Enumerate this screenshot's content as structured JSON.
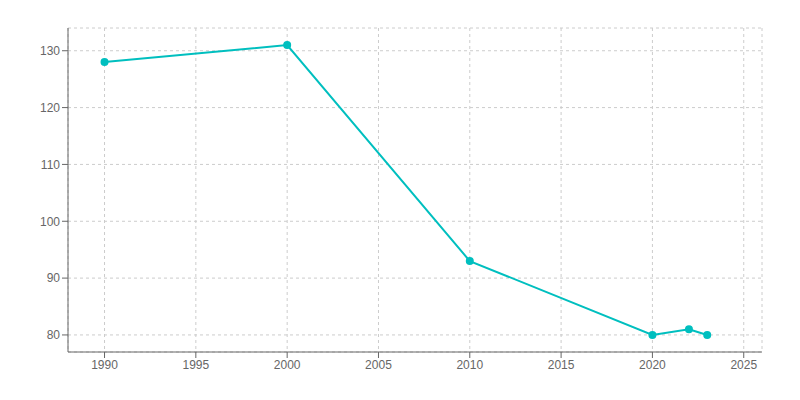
{
  "chart_data": {
    "type": "line",
    "x": [
      1990,
      2000,
      2010,
      2020,
      2022,
      2023
    ],
    "values": [
      128,
      131,
      93,
      80,
      81,
      80
    ],
    "color": "#00BFBF",
    "marker": "circle",
    "xlim": [
      1988,
      2026
    ],
    "ylim": [
      77,
      134
    ],
    "xticks": [
      1990,
      1995,
      2000,
      2005,
      2010,
      2015,
      2020,
      2025
    ],
    "yticks": [
      80,
      90,
      100,
      110,
      120,
      130
    ],
    "grid": true
  }
}
